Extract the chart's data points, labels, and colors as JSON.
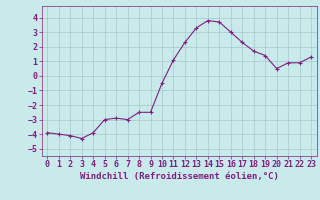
{
  "x": [
    0,
    1,
    2,
    3,
    4,
    5,
    6,
    7,
    8,
    9,
    10,
    11,
    12,
    13,
    14,
    15,
    16,
    17,
    18,
    19,
    20,
    21,
    22,
    23
  ],
  "y": [
    -3.9,
    -4.0,
    -4.1,
    -4.3,
    -3.9,
    -3.0,
    -2.9,
    -3.0,
    -2.5,
    -2.5,
    -0.5,
    1.1,
    2.3,
    3.3,
    3.8,
    3.7,
    3.0,
    2.3,
    1.7,
    1.4,
    0.5,
    0.9,
    0.9,
    1.3
  ],
  "line_color": "#7f1f7f",
  "marker": "+",
  "marker_size": 3,
  "background_color": "#c8eaea",
  "grid_color": "#a8c8c8",
  "xlabel": "Windchill (Refroidissement éolien,°C)",
  "xlabel_fontsize": 6.5,
  "tick_color": "#7f1f7f",
  "tick_fontsize": 6.0,
  "ylim": [
    -5.5,
    4.8
  ],
  "xlim": [
    -0.5,
    23.5
  ],
  "yticks": [
    -5,
    -4,
    -3,
    -2,
    -1,
    0,
    1,
    2,
    3,
    4
  ],
  "xticks": [
    0,
    1,
    2,
    3,
    4,
    5,
    6,
    7,
    8,
    9,
    10,
    11,
    12,
    13,
    14,
    15,
    16,
    17,
    18,
    19,
    20,
    21,
    22,
    23
  ]
}
